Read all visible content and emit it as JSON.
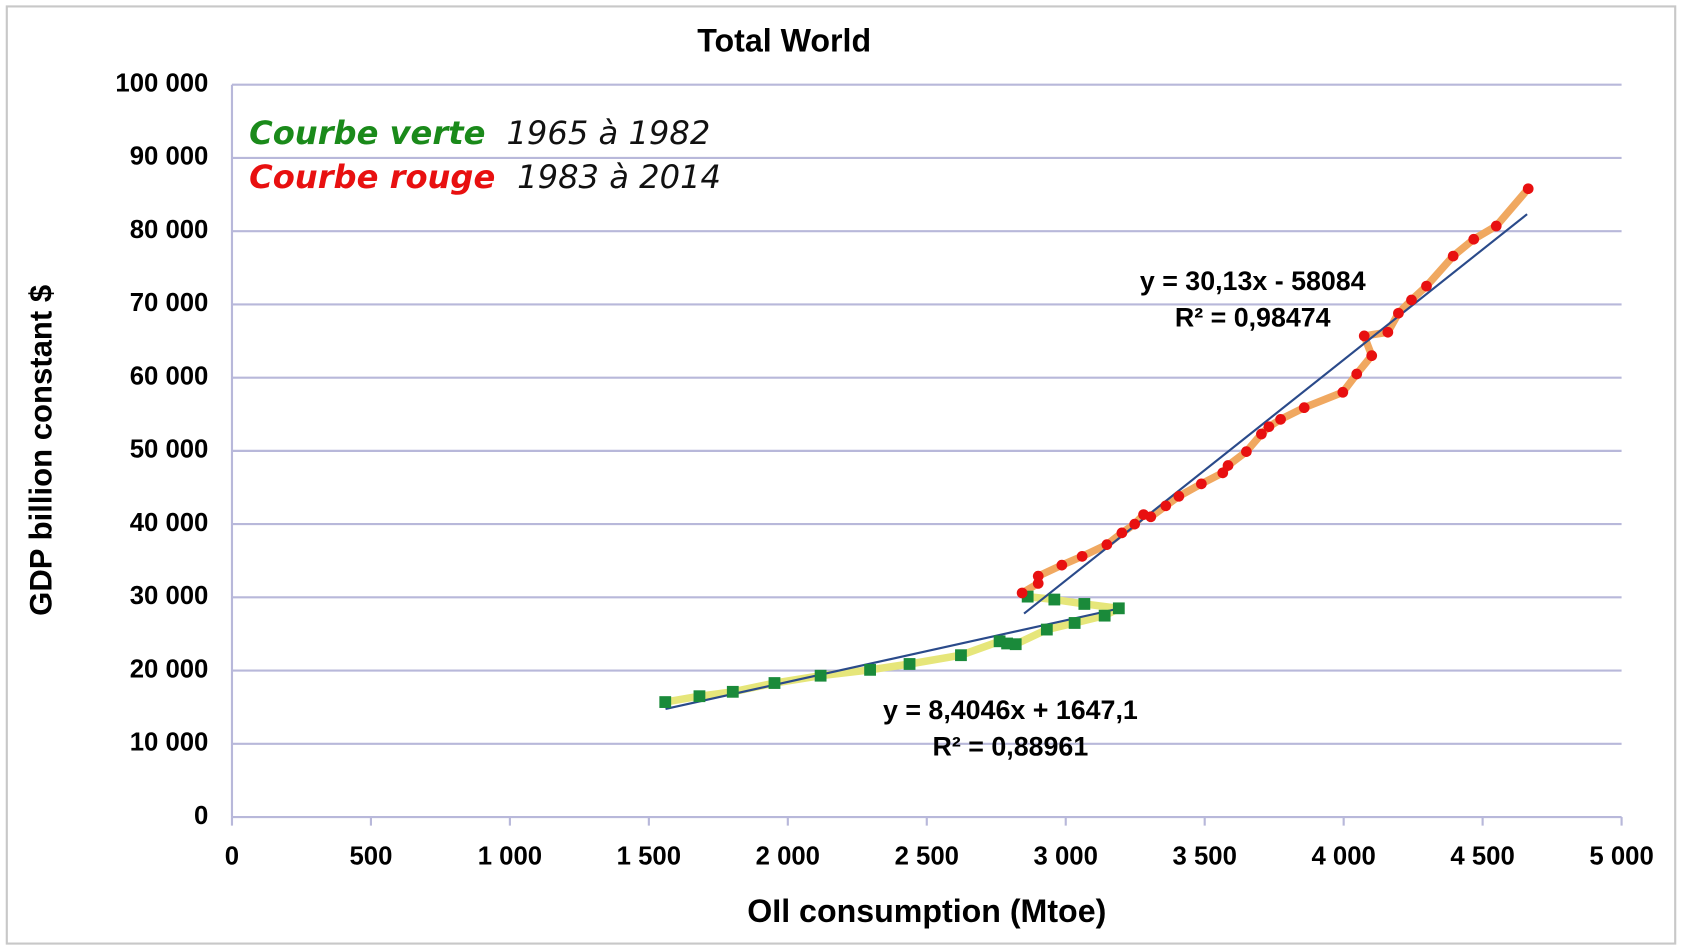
{
  "chart_data": {
    "type": "scatter",
    "title": "Total World",
    "x_label": "OIl consumption (Mtoe)",
    "y_label": "GDP billion constant $",
    "xlim": [
      0,
      5000
    ],
    "ylim": [
      0,
      100000
    ],
    "xticks": [
      0,
      500,
      {
        "value": 1000,
        "label": "1 000"
      },
      {
        "value": 1500,
        "label": "1 500"
      },
      {
        "value": 2000,
        "label": "2 000"
      },
      {
        "value": 2500,
        "label": "2 500"
      },
      {
        "value": 3000,
        "label": "3 000"
      },
      {
        "value": 3500,
        "label": "3 500"
      },
      {
        "value": 4000,
        "label": "4 000"
      },
      {
        "value": 4500,
        "label": "4 500"
      },
      {
        "value": 5000,
        "label": "5 000"
      }
    ],
    "yticks": [
      0,
      {
        "value": 10000,
        "label": "10 000"
      },
      {
        "value": 20000,
        "label": "20 000"
      },
      {
        "value": 30000,
        "label": "30 000"
      },
      {
        "value": 40000,
        "label": "40 000"
      },
      {
        "value": 50000,
        "label": "50 000"
      },
      {
        "value": 60000,
        "label": "60 000"
      },
      {
        "value": 70000,
        "label": "70 000"
      },
      {
        "value": 80000,
        "label": "80 000"
      },
      {
        "value": 90000,
        "label": "90 000"
      },
      {
        "value": 100000,
        "label": "100 000"
      }
    ],
    "grid": true,
    "series": [
      {
        "name": "Courbe verte",
        "period": "1965 à 1982",
        "color": "#1a8a3a",
        "line_color": "#e6e67a",
        "x": [
          1559,
          1682,
          1802,
          1952,
          2118,
          2296,
          2438,
          2623,
          2762,
          2789,
          2820,
          2932,
          3032,
          3140,
          3191,
          3067,
          2959,
          2863
        ],
        "values": [
          15700,
          16500,
          17100,
          18300,
          19300,
          20100,
          20900,
          22100,
          24000,
          23700,
          23600,
          25600,
          26500,
          27500,
          28500,
          29100,
          29700,
          30100
        ]
      },
      {
        "name": "Courbe rouge",
        "period": "1983 à 2014",
        "color": "#e81010",
        "line_color": "#f0a860",
        "x": [
          2843,
          2901,
          2901,
          2986,
          3059,
          3148,
          3202,
          3248,
          3280,
          3306,
          3360,
          3407,
          3488,
          3565,
          3584,
          3650,
          3704,
          3731,
          3773,
          3858,
          3997,
          4047,
          4101,
          4074,
          4159,
          4197,
          4244,
          4298,
          4394,
          4468,
          4549,
          4664
        ],
        "values": [
          30600,
          31900,
          32900,
          34400,
          35600,
          37200,
          38800,
          40000,
          41300,
          41000,
          42500,
          43800,
          45500,
          47000,
          48000,
          49900,
          52300,
          53300,
          54300,
          55900,
          58000,
          60500,
          63000,
          65700,
          66200,
          68800,
          70600,
          72500,
          76600,
          78900,
          80700,
          85800
        ]
      }
    ],
    "trendlines": [
      {
        "equation": "y = 8,4046x + 1647,1",
        "r2": "R² = 0,88961",
        "x": [
          1560,
          3190
        ],
        "y": [
          14758,
          28458
        ],
        "color": "#2a4a8a"
      },
      {
        "equation": "y = 30,13x - 58084",
        "r2": "R² = 0,98474",
        "x": [
          2850,
          4660
        ],
        "y": [
          27786,
          82322
        ],
        "color": "#2a4a8a"
      }
    ]
  }
}
